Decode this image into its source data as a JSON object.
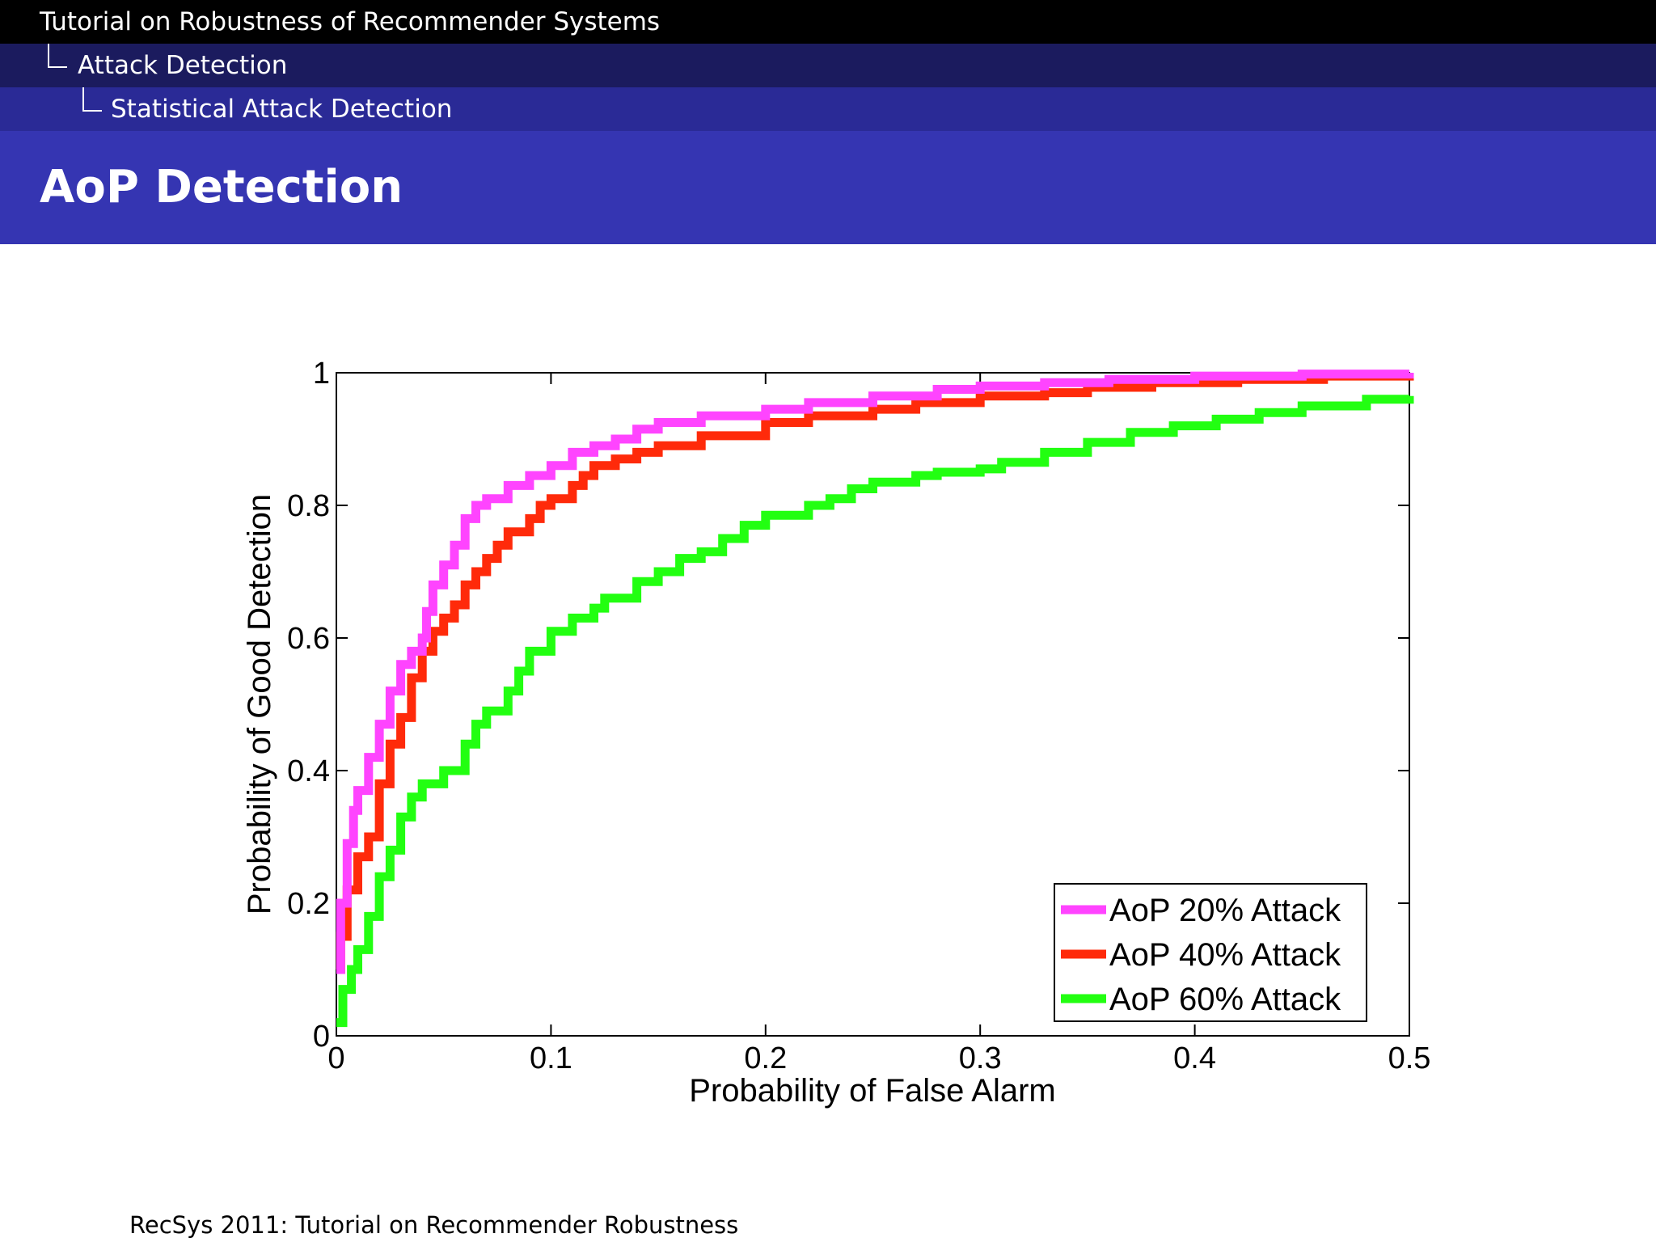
{
  "header": {
    "breadcrumb": [
      "Tutorial on Robustness of Recommender Systems",
      "Attack Detection",
      "Statistical Attack Detection"
    ],
    "title": "AoP Detection"
  },
  "footer": {
    "text": "RecSys 2011: Tutorial on Recommender Robustness"
  },
  "chart_data": {
    "type": "line",
    "title": "",
    "xlabel": "Probability of False Alarm",
    "ylabel": "Probability of Good Detection",
    "xlim": [
      0,
      0.5
    ],
    "ylim": [
      0,
      1
    ],
    "xticks": [
      0,
      0.1,
      0.2,
      0.3,
      0.4,
      0.5
    ],
    "yticks": [
      0,
      0.2,
      0.4,
      0.6,
      0.8,
      1
    ],
    "xtick_labels": [
      "0",
      "0.1",
      "0.2",
      "0.3",
      "0.4",
      "0.5"
    ],
    "ytick_labels": [
      "0",
      "0.2",
      "0.4",
      "0.6",
      "0.8",
      "1"
    ],
    "grid": false,
    "legend_position": "bottom-right",
    "series": [
      {
        "name": "AoP 20% Attack",
        "color": "#ff44ff",
        "points": [
          [
            0,
            0.1
          ],
          [
            0.002,
            0.2
          ],
          [
            0.005,
            0.29
          ],
          [
            0.008,
            0.34
          ],
          [
            0.01,
            0.37
          ],
          [
            0.015,
            0.42
          ],
          [
            0.02,
            0.47
          ],
          [
            0.025,
            0.52
          ],
          [
            0.03,
            0.56
          ],
          [
            0.035,
            0.58
          ],
          [
            0.04,
            0.6
          ],
          [
            0.042,
            0.64
          ],
          [
            0.045,
            0.68
          ],
          [
            0.05,
            0.71
          ],
          [
            0.055,
            0.74
          ],
          [
            0.06,
            0.78
          ],
          [
            0.065,
            0.8
          ],
          [
            0.07,
            0.81
          ],
          [
            0.08,
            0.83
          ],
          [
            0.09,
            0.845
          ],
          [
            0.1,
            0.86
          ],
          [
            0.11,
            0.88
          ],
          [
            0.12,
            0.89
          ],
          [
            0.13,
            0.9
          ],
          [
            0.14,
            0.915
          ],
          [
            0.15,
            0.925
          ],
          [
            0.17,
            0.935
          ],
          [
            0.2,
            0.945
          ],
          [
            0.22,
            0.955
          ],
          [
            0.25,
            0.965
          ],
          [
            0.28,
            0.975
          ],
          [
            0.3,
            0.98
          ],
          [
            0.33,
            0.985
          ],
          [
            0.36,
            0.99
          ],
          [
            0.4,
            0.995
          ],
          [
            0.45,
            0.998
          ],
          [
            0.5,
            1
          ]
        ]
      },
      {
        "name": "AoP 40% Attack",
        "color": "#ff2a0a",
        "points": [
          [
            0,
            0.1
          ],
          [
            0.002,
            0.15
          ],
          [
            0.005,
            0.22
          ],
          [
            0.01,
            0.27
          ],
          [
            0.015,
            0.3
          ],
          [
            0.02,
            0.38
          ],
          [
            0.025,
            0.44
          ],
          [
            0.03,
            0.48
          ],
          [
            0.035,
            0.54
          ],
          [
            0.04,
            0.58
          ],
          [
            0.045,
            0.61
          ],
          [
            0.05,
            0.63
          ],
          [
            0.055,
            0.65
          ],
          [
            0.06,
            0.68
          ],
          [
            0.065,
            0.7
          ],
          [
            0.07,
            0.72
          ],
          [
            0.075,
            0.74
          ],
          [
            0.08,
            0.76
          ],
          [
            0.09,
            0.78
          ],
          [
            0.095,
            0.8
          ],
          [
            0.1,
            0.81
          ],
          [
            0.11,
            0.83
          ],
          [
            0.115,
            0.845
          ],
          [
            0.12,
            0.86
          ],
          [
            0.13,
            0.87
          ],
          [
            0.14,
            0.88
          ],
          [
            0.15,
            0.89
          ],
          [
            0.17,
            0.905
          ],
          [
            0.2,
            0.925
          ],
          [
            0.22,
            0.935
          ],
          [
            0.25,
            0.945
          ],
          [
            0.27,
            0.955
          ],
          [
            0.3,
            0.965
          ],
          [
            0.33,
            0.97
          ],
          [
            0.35,
            0.978
          ],
          [
            0.38,
            0.985
          ],
          [
            0.42,
            0.99
          ],
          [
            0.46,
            0.995
          ],
          [
            0.5,
            0.998
          ]
        ]
      },
      {
        "name": "AoP 60% Attack",
        "color": "#22ff11",
        "points": [
          [
            0,
            0.02
          ],
          [
            0.003,
            0.07
          ],
          [
            0.007,
            0.1
          ],
          [
            0.01,
            0.13
          ],
          [
            0.015,
            0.18
          ],
          [
            0.02,
            0.24
          ],
          [
            0.025,
            0.28
          ],
          [
            0.03,
            0.33
          ],
          [
            0.035,
            0.36
          ],
          [
            0.04,
            0.38
          ],
          [
            0.05,
            0.4
          ],
          [
            0.06,
            0.44
          ],
          [
            0.065,
            0.47
          ],
          [
            0.07,
            0.49
          ],
          [
            0.08,
            0.52
          ],
          [
            0.085,
            0.55
          ],
          [
            0.09,
            0.58
          ],
          [
            0.1,
            0.61
          ],
          [
            0.11,
            0.63
          ],
          [
            0.12,
            0.645
          ],
          [
            0.125,
            0.66
          ],
          [
            0.14,
            0.685
          ],
          [
            0.15,
            0.7
          ],
          [
            0.16,
            0.72
          ],
          [
            0.17,
            0.73
          ],
          [
            0.18,
            0.75
          ],
          [
            0.19,
            0.77
          ],
          [
            0.2,
            0.785
          ],
          [
            0.22,
            0.8
          ],
          [
            0.23,
            0.81
          ],
          [
            0.24,
            0.825
          ],
          [
            0.25,
            0.835
          ],
          [
            0.27,
            0.845
          ],
          [
            0.28,
            0.85
          ],
          [
            0.3,
            0.855
          ],
          [
            0.31,
            0.865
          ],
          [
            0.33,
            0.88
          ],
          [
            0.35,
            0.895
          ],
          [
            0.37,
            0.91
          ],
          [
            0.39,
            0.92
          ],
          [
            0.41,
            0.93
          ],
          [
            0.43,
            0.94
          ],
          [
            0.45,
            0.95
          ],
          [
            0.48,
            0.96
          ],
          [
            0.5,
            0.965
          ]
        ]
      }
    ]
  }
}
